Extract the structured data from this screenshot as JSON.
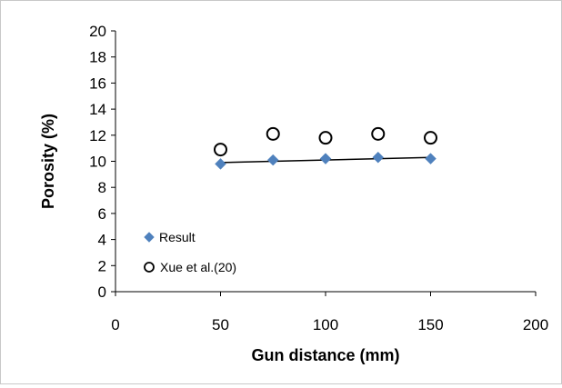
{
  "chart_data": {
    "type": "scatter",
    "title": "",
    "xlabel": "Gun distance (mm)",
    "ylabel": "Porosity (%)",
    "xlim": [
      0,
      200
    ],
    "ylim": [
      0,
      20
    ],
    "x_ticks": [
      "0",
      "50",
      "100",
      "150",
      "200"
    ],
    "y_ticks": [
      "0",
      "2",
      "4",
      "6",
      "8",
      "10",
      "12",
      "14",
      "16",
      "18",
      "20"
    ],
    "grid": false,
    "legend_position": "bottom-left",
    "series": [
      {
        "name": "Result",
        "marker": "filled-diamond",
        "color": "#4f81bd",
        "x": [
          50,
          75,
          100,
          125,
          150
        ],
        "y": [
          9.8,
          10.1,
          10.2,
          10.3,
          10.2
        ]
      },
      {
        "name": "Xue et al.(20)",
        "marker": "open-circle",
        "color": "#000000",
        "x": [
          50,
          75,
          100,
          125,
          150
        ],
        "y": [
          10.9,
          12.1,
          11.8,
          12.1,
          11.8
        ]
      }
    ],
    "trendline": {
      "series": "Result",
      "type": "linear",
      "x": [
        50,
        150
      ],
      "y": [
        9.9,
        10.3
      ],
      "color": "#000000"
    }
  }
}
